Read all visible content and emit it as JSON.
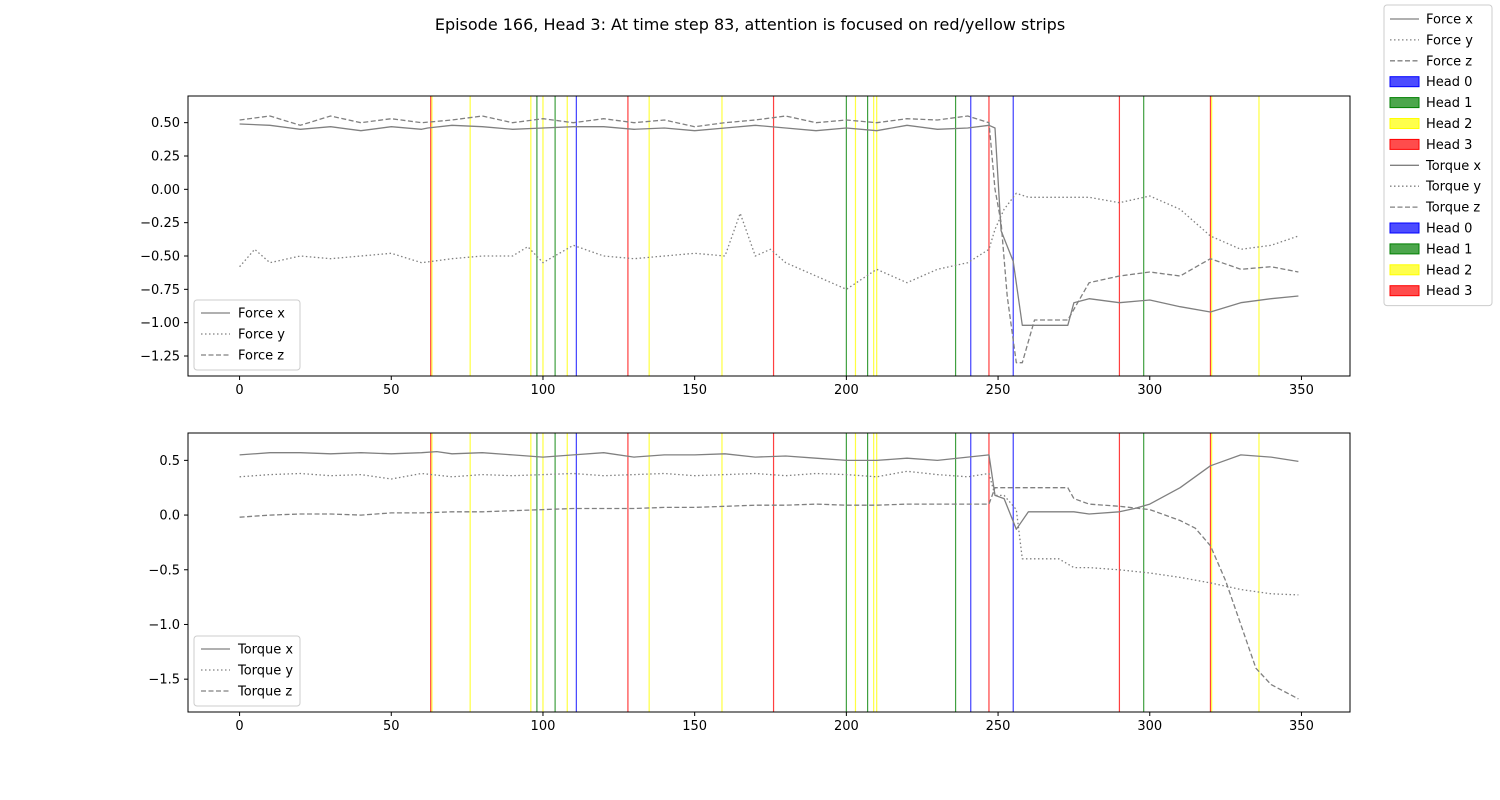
{
  "title": "Episode 166, Head 3: At time step 83, attention is focused on red/yellow strips",
  "colors": {
    "Head 0": "#0000ff",
    "Head 1": "#008000",
    "Head 2": "#ffff00",
    "Head 3": "#ff0000",
    "line": "#808080"
  },
  "figure_legend": [
    {
      "label": "Force x",
      "kind": "line",
      "style": "solid"
    },
    {
      "label": "Force y",
      "kind": "line",
      "style": "dotted"
    },
    {
      "label": "Force z",
      "kind": "line",
      "style": "dashed"
    },
    {
      "label": "Head 0",
      "kind": "patch",
      "color": "#0000ff"
    },
    {
      "label": "Head 1",
      "kind": "patch",
      "color": "#008000"
    },
    {
      "label": "Head 2",
      "kind": "patch",
      "color": "#ffff00"
    },
    {
      "label": "Head 3",
      "kind": "patch",
      "color": "#ff0000"
    },
    {
      "label": "Torque x",
      "kind": "line",
      "style": "solid"
    },
    {
      "label": "Torque y",
      "kind": "line",
      "style": "dotted"
    },
    {
      "label": "Torque z",
      "kind": "line",
      "style": "dashed"
    },
    {
      "label": "Head 0",
      "kind": "patch",
      "color": "#0000ff"
    },
    {
      "label": "Head 1",
      "kind": "patch",
      "color": "#008000"
    },
    {
      "label": "Head 2",
      "kind": "patch",
      "color": "#ffff00"
    },
    {
      "label": "Head 3",
      "kind": "patch",
      "color": "#ff0000"
    }
  ],
  "chart_data": [
    {
      "type": "line",
      "title": "",
      "xlabel": "",
      "ylabel": "",
      "xlim": [
        -17,
        366
      ],
      "ylim": [
        -1.4,
        0.7
      ],
      "xticks": [
        0,
        50,
        100,
        150,
        200,
        250,
        300,
        350
      ],
      "yticks": [
        0.5,
        0.25,
        0.0,
        -0.25,
        -0.5,
        -0.75,
        -1.0,
        -1.25
      ],
      "ytick_labels": [
        "0.50",
        "0.25",
        "0.00",
        "−0.25",
        "−0.50",
        "−0.75",
        "−1.00",
        "−1.25"
      ],
      "grid": false,
      "legend_position": "lower-left",
      "series": [
        {
          "name": "Force x",
          "style": "solid",
          "x": [
            0,
            10,
            20,
            30,
            40,
            50,
            60,
            62,
            70,
            80,
            90,
            100,
            110,
            120,
            130,
            140,
            150,
            160,
            170,
            180,
            190,
            200,
            210,
            220,
            230,
            240,
            247,
            249,
            251,
            255,
            258,
            265,
            273,
            275,
            280,
            290,
            300,
            310,
            320,
            330,
            340,
            349
          ],
          "y": [
            0.49,
            0.48,
            0.45,
            0.47,
            0.44,
            0.47,
            0.45,
            0.46,
            0.48,
            0.47,
            0.45,
            0.46,
            0.47,
            0.47,
            0.45,
            0.46,
            0.44,
            0.46,
            0.48,
            0.46,
            0.44,
            0.46,
            0.44,
            0.48,
            0.45,
            0.46,
            0.48,
            0.46,
            -0.31,
            -0.54,
            -1.02,
            -1.02,
            -1.02,
            -0.85,
            -0.82,
            -0.85,
            -0.83,
            -0.88,
            -0.92,
            -0.85,
            -0.82,
            -0.8
          ]
        },
        {
          "name": "Force y",
          "style": "dotted",
          "x": [
            0,
            5,
            10,
            20,
            30,
            40,
            50,
            60,
            70,
            80,
            90,
            95,
            100,
            110,
            120,
            130,
            140,
            150,
            160,
            165,
            170,
            175,
            180,
            190,
            200,
            210,
            220,
            230,
            240,
            247,
            249,
            252,
            256,
            260,
            270,
            280,
            290,
            300,
            310,
            320,
            330,
            340,
            349
          ],
          "y": [
            -0.58,
            -0.45,
            -0.55,
            -0.5,
            -0.52,
            -0.5,
            -0.48,
            -0.55,
            -0.52,
            -0.5,
            -0.5,
            -0.43,
            -0.55,
            -0.42,
            -0.5,
            -0.52,
            -0.5,
            -0.48,
            -0.5,
            -0.18,
            -0.5,
            -0.45,
            -0.55,
            -0.65,
            -0.75,
            -0.6,
            -0.7,
            -0.6,
            -0.55,
            -0.45,
            -0.3,
            -0.15,
            -0.03,
            -0.06,
            -0.06,
            -0.06,
            -0.1,
            -0.05,
            -0.15,
            -0.35,
            -0.45,
            -0.42,
            -0.35
          ]
        },
        {
          "name": "Force z",
          "style": "dashed",
          "x": [
            0,
            10,
            20,
            30,
            40,
            50,
            60,
            70,
            80,
            90,
            100,
            110,
            120,
            130,
            140,
            150,
            160,
            170,
            180,
            190,
            200,
            210,
            220,
            230,
            240,
            247,
            249,
            251,
            253,
            256,
            258,
            262,
            270,
            273,
            280,
            290,
            300,
            310,
            320,
            330,
            340,
            349
          ],
          "y": [
            0.52,
            0.55,
            0.48,
            0.55,
            0.5,
            0.53,
            0.5,
            0.52,
            0.55,
            0.5,
            0.53,
            0.5,
            0.53,
            0.5,
            0.52,
            0.47,
            0.5,
            0.52,
            0.55,
            0.5,
            0.52,
            0.5,
            0.53,
            0.52,
            0.55,
            0.5,
            0.0,
            -0.25,
            -0.8,
            -1.3,
            -1.3,
            -0.98,
            -0.98,
            -0.98,
            -0.7,
            -0.65,
            -0.62,
            -0.65,
            -0.52,
            -0.6,
            -0.58,
            -0.62
          ]
        }
      ],
      "strips": [
        {
          "x": 63,
          "head": "Head 3"
        },
        {
          "x": 63.4,
          "head": "Head 2"
        },
        {
          "x": 76,
          "head": "Head 2"
        },
        {
          "x": 96,
          "head": "Head 2"
        },
        {
          "x": 98,
          "head": "Head 1"
        },
        {
          "x": 100,
          "head": "Head 2"
        },
        {
          "x": 104,
          "head": "Head 1"
        },
        {
          "x": 108,
          "head": "Head 2"
        },
        {
          "x": 111,
          "head": "Head 0"
        },
        {
          "x": 128,
          "head": "Head 3"
        },
        {
          "x": 135,
          "head": "Head 2"
        },
        {
          "x": 159,
          "head": "Head 2"
        },
        {
          "x": 176,
          "head": "Head 3"
        },
        {
          "x": 200,
          "head": "Head 1"
        },
        {
          "x": 203,
          "head": "Head 2"
        },
        {
          "x": 207,
          "head": "Head 1"
        },
        {
          "x": 209,
          "head": "Head 2"
        },
        {
          "x": 210,
          "head": "Head 2"
        },
        {
          "x": 236,
          "head": "Head 1"
        },
        {
          "x": 241,
          "head": "Head 0"
        },
        {
          "x": 247,
          "head": "Head 3"
        },
        {
          "x": 255,
          "head": "Head 0"
        },
        {
          "x": 290,
          "head": "Head 3"
        },
        {
          "x": 298,
          "head": "Head 1"
        },
        {
          "x": 320,
          "head": "Head 3"
        },
        {
          "x": 320.4,
          "head": "Head 2"
        },
        {
          "x": 336,
          "head": "Head 2"
        }
      ]
    },
    {
      "type": "line",
      "title": "",
      "xlabel": "",
      "ylabel": "",
      "xlim": [
        -17,
        366
      ],
      "ylim": [
        -1.8,
        0.75
      ],
      "xticks": [
        0,
        50,
        100,
        150,
        200,
        250,
        300,
        350
      ],
      "yticks": [
        0.5,
        0.0,
        -0.5,
        -1.0,
        -1.5
      ],
      "ytick_labels": [
        "0.5",
        "0.0",
        "−0.5",
        "−1.0",
        "−1.5"
      ],
      "grid": false,
      "legend_position": "lower-left",
      "series": [
        {
          "name": "Torque x",
          "style": "solid",
          "x": [
            0,
            10,
            20,
            30,
            40,
            50,
            60,
            65,
            70,
            80,
            90,
            100,
            110,
            120,
            130,
            140,
            150,
            160,
            170,
            180,
            190,
            200,
            210,
            220,
            230,
            240,
            247,
            249,
            252,
            256,
            260,
            270,
            275,
            280,
            290,
            295,
            300,
            310,
            320,
            330,
            340,
            349
          ],
          "y": [
            0.55,
            0.57,
            0.57,
            0.56,
            0.57,
            0.56,
            0.57,
            0.58,
            0.56,
            0.57,
            0.55,
            0.53,
            0.55,
            0.57,
            0.53,
            0.55,
            0.55,
            0.56,
            0.53,
            0.54,
            0.52,
            0.5,
            0.5,
            0.52,
            0.5,
            0.53,
            0.55,
            0.18,
            0.15,
            -0.13,
            0.03,
            0.03,
            0.03,
            0.01,
            0.03,
            0.06,
            0.1,
            0.25,
            0.45,
            0.55,
            0.53,
            0.49
          ]
        },
        {
          "name": "Torque y",
          "style": "dotted",
          "x": [
            0,
            10,
            20,
            30,
            40,
            50,
            60,
            70,
            80,
            90,
            100,
            110,
            120,
            130,
            140,
            150,
            160,
            170,
            180,
            190,
            200,
            210,
            220,
            230,
            240,
            247,
            249,
            252,
            256,
            258,
            260,
            270,
            275,
            280,
            290,
            300,
            310,
            320,
            330,
            340,
            349
          ],
          "y": [
            0.35,
            0.37,
            0.38,
            0.36,
            0.37,
            0.33,
            0.38,
            0.35,
            0.37,
            0.36,
            0.37,
            0.38,
            0.36,
            0.37,
            0.38,
            0.36,
            0.37,
            0.38,
            0.36,
            0.38,
            0.37,
            0.35,
            0.4,
            0.37,
            0.35,
            0.38,
            0.18,
            0.18,
            0.05,
            -0.4,
            -0.4,
            -0.4,
            -0.48,
            -0.48,
            -0.5,
            -0.53,
            -0.57,
            -0.62,
            -0.68,
            -0.72,
            -0.73
          ]
        },
        {
          "name": "Torque z",
          "style": "dashed",
          "x": [
            0,
            10,
            20,
            30,
            40,
            50,
            60,
            70,
            80,
            90,
            100,
            110,
            120,
            130,
            140,
            150,
            160,
            170,
            180,
            190,
            200,
            210,
            220,
            230,
            240,
            247,
            249,
            256,
            258,
            270,
            273,
            275,
            280,
            290,
            300,
            310,
            315,
            320,
            325,
            330,
            335,
            340,
            349
          ],
          "y": [
            -0.02,
            0.0,
            0.01,
            0.01,
            0.0,
            0.02,
            0.02,
            0.03,
            0.03,
            0.04,
            0.05,
            0.06,
            0.06,
            0.06,
            0.07,
            0.07,
            0.08,
            0.09,
            0.09,
            0.1,
            0.09,
            0.09,
            0.1,
            0.1,
            0.1,
            0.1,
            0.25,
            0.25,
            0.25,
            0.25,
            0.25,
            0.15,
            0.1,
            0.08,
            0.05,
            -0.05,
            -0.12,
            -0.28,
            -0.6,
            -1.0,
            -1.4,
            -1.55,
            -1.68
          ]
        }
      ],
      "strips": [
        {
          "x": 63,
          "head": "Head 3"
        },
        {
          "x": 63.4,
          "head": "Head 2"
        },
        {
          "x": 76,
          "head": "Head 2"
        },
        {
          "x": 96,
          "head": "Head 2"
        },
        {
          "x": 98,
          "head": "Head 1"
        },
        {
          "x": 100,
          "head": "Head 2"
        },
        {
          "x": 104,
          "head": "Head 1"
        },
        {
          "x": 108,
          "head": "Head 2"
        },
        {
          "x": 111,
          "head": "Head 0"
        },
        {
          "x": 128,
          "head": "Head 3"
        },
        {
          "x": 135,
          "head": "Head 2"
        },
        {
          "x": 159,
          "head": "Head 2"
        },
        {
          "x": 176,
          "head": "Head 3"
        },
        {
          "x": 200,
          "head": "Head 1"
        },
        {
          "x": 203,
          "head": "Head 2"
        },
        {
          "x": 207,
          "head": "Head 1"
        },
        {
          "x": 209,
          "head": "Head 2"
        },
        {
          "x": 210,
          "head": "Head 2"
        },
        {
          "x": 236,
          "head": "Head 1"
        },
        {
          "x": 241,
          "head": "Head 0"
        },
        {
          "x": 247,
          "head": "Head 3"
        },
        {
          "x": 255,
          "head": "Head 0"
        },
        {
          "x": 290,
          "head": "Head 3"
        },
        {
          "x": 298,
          "head": "Head 1"
        },
        {
          "x": 320,
          "head": "Head 3"
        },
        {
          "x": 320.4,
          "head": "Head 2"
        },
        {
          "x": 336,
          "head": "Head 2"
        }
      ]
    }
  ]
}
